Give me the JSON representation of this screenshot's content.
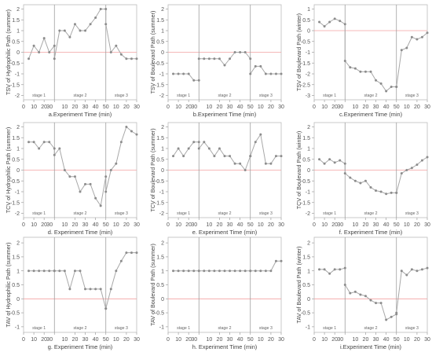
{
  "chart_data": [
    {
      "id": "a",
      "type": "line",
      "xlabel": "a.Experiment Time (min)",
      "ylabel": "TSV of Hydrophilic Path (summer)",
      "xticks": [
        "0",
        "10",
        "20",
        "30",
        "10",
        "20",
        "30",
        "40",
        "50",
        "10",
        "20",
        "30"
      ],
      "ylim": [
        -2.2,
        2.2
      ],
      "yticks": [
        -2,
        -1.5,
        -1,
        -0.5,
        0,
        0.5,
        1,
        1.5,
        2
      ],
      "stage_labels": [
        "stage 1",
        "stage 2",
        "stage 3"
      ],
      "series": [
        {
          "stage": 1,
          "x": [
            5,
            10,
            15,
            20,
            25,
            30
          ],
          "y": [
            -0.3,
            0.3,
            0,
            0.65,
            0,
            0.3
          ]
        },
        {
          "stage": 2,
          "x": [
            0,
            5,
            10,
            15,
            20,
            25,
            30,
            35,
            40,
            45,
            50
          ],
          "y": [
            -0.3,
            1,
            1,
            0.7,
            1.3,
            1,
            1,
            1.3,
            1.6,
            2,
            2
          ]
        },
        {
          "stage": 3,
          "x": [
            0,
            5,
            10,
            15,
            20,
            25,
            30
          ],
          "y": [
            1.3,
            0,
            0.3,
            -0.1,
            -0.3,
            -0.3,
            -0.3
          ]
        }
      ]
    },
    {
      "id": "b",
      "type": "line",
      "xlabel": "b.Experiment Time (min)",
      "ylabel": "TSV of Boulevard Path (summer)",
      "xticks": [
        "0",
        "10",
        "20",
        "30",
        "10",
        "20",
        "30",
        "40",
        "50",
        "10",
        "20",
        "30"
      ],
      "ylim": [
        -2.2,
        2.2
      ],
      "yticks": [
        -2,
        -1.5,
        -1,
        -0.5,
        0,
        0.5,
        1,
        1.5,
        2
      ],
      "stage_labels": [
        "stage 1",
        "stage 2",
        "stage 3"
      ],
      "series": [
        {
          "stage": 1,
          "x": [
            5,
            10,
            15,
            20,
            25,
            30
          ],
          "y": [
            -1,
            -1,
            -1,
            -1,
            -1.3,
            -1.3
          ]
        },
        {
          "stage": 2,
          "x": [
            0,
            5,
            10,
            15,
            20,
            25,
            30,
            35,
            40,
            45,
            50
          ],
          "y": [
            -0.3,
            -0.3,
            -0.3,
            -0.3,
            -0.3,
            -0.6,
            -0.3,
            0,
            0,
            0,
            -0.3
          ]
        },
        {
          "stage": 3,
          "x": [
            0,
            5,
            10,
            15,
            20,
            25,
            30
          ],
          "y": [
            -1,
            -0.65,
            -0.65,
            -1,
            -1,
            -1,
            -1
          ]
        }
      ]
    },
    {
      "id": "c",
      "type": "line",
      "xlabel": "c.Experiment Time (min)",
      "ylabel": "TSV of Boulevard Path (winter)",
      "xticks": [
        "0",
        "10",
        "20",
        "30",
        "10",
        "20",
        "30",
        "40",
        "50",
        "10",
        "20",
        "30"
      ],
      "ylim": [
        -3.2,
        1.2
      ],
      "yticks": [
        -3,
        -2.5,
        -2,
        -1.5,
        -1,
        -0.5,
        0,
        0.5,
        1
      ],
      "stage_labels": [
        "stage 1",
        "stage 2",
        "stage 3"
      ],
      "series": [
        {
          "stage": 1,
          "x": [
            5,
            10,
            15,
            20,
            25,
            30
          ],
          "y": [
            0.4,
            0.2,
            0.4,
            0.55,
            0.45,
            0.3
          ]
        },
        {
          "stage": 2,
          "x": [
            0,
            5,
            10,
            15,
            20,
            25,
            30,
            35,
            40,
            45,
            50
          ],
          "y": [
            -1.4,
            -1.7,
            -1.75,
            -1.9,
            -1.9,
            -1.9,
            -2.3,
            -2.45,
            -2.8,
            -2.6,
            -2.6
          ]
        },
        {
          "stage": 3,
          "x": [
            0,
            5,
            10,
            15,
            20,
            25,
            30
          ],
          "y": [
            -2.6,
            -0.9,
            -0.8,
            -0.3,
            -0.4,
            -0.3,
            -0.1
          ]
        }
      ]
    },
    {
      "id": "d",
      "type": "line",
      "xlabel": "d. Experiment Time (min)",
      "ylabel": "TCV of Hydrophilic Path (summer)",
      "xticks": [
        "0",
        "10",
        "20",
        "30",
        "10",
        "20",
        "30",
        "40",
        "50",
        "10",
        "20",
        "30"
      ],
      "ylim": [
        -2.2,
        2.2
      ],
      "yticks": [
        -2,
        -1.5,
        -1,
        -0.5,
        0,
        0.5,
        1,
        1.5,
        2
      ],
      "stage_labels": [
        "stage 1",
        "stage 2",
        "stage 3"
      ],
      "series": [
        {
          "stage": 1,
          "x": [
            5,
            10,
            15,
            20,
            25,
            30
          ],
          "y": [
            1.3,
            1.3,
            1,
            1.3,
            1.3,
            1
          ]
        },
        {
          "stage": 2,
          "x": [
            0,
            5,
            10,
            15,
            20,
            25,
            30,
            35,
            40,
            45,
            50
          ],
          "y": [
            0.7,
            1,
            0,
            -0.3,
            -0.3,
            -1,
            -0.65,
            -0.65,
            -1.3,
            -1.65,
            -0.3
          ]
        },
        {
          "stage": 3,
          "x": [
            0,
            5,
            10,
            15,
            20,
            25,
            30
          ],
          "y": [
            -1,
            0,
            0.3,
            1.3,
            2,
            1.8,
            1.65
          ]
        }
      ]
    },
    {
      "id": "e",
      "type": "line",
      "xlabel": "e. Experiment Time (min)",
      "ylabel": "TCV of Boulevard Path (summer)",
      "xticks": [
        "0",
        "10",
        "20",
        "30",
        "10",
        "20",
        "30",
        "40",
        "50",
        "10",
        "20",
        "30"
      ],
      "ylim": [
        -2.2,
        2.2
      ],
      "yticks": [
        -2,
        -1.5,
        -1,
        -0.5,
        0,
        0.5,
        1,
        1.5,
        2
      ],
      "stage_labels": [
        "stage 1",
        "stage 2",
        "stage 3"
      ],
      "series": [
        {
          "stage": 1,
          "x": [
            5,
            10,
            15,
            20,
            25,
            30
          ],
          "y": [
            0.65,
            1,
            0.65,
            1,
            1.3,
            1.3
          ]
        },
        {
          "stage": 2,
          "x": [
            0,
            5,
            10,
            15,
            20,
            25,
            30,
            35,
            40,
            45,
            50
          ],
          "y": [
            1,
            1.3,
            1,
            0.65,
            1,
            0.65,
            0.65,
            0.3,
            0.3,
            0,
            0.65
          ]
        },
        {
          "stage": 3,
          "x": [
            0,
            5,
            10,
            15,
            20,
            25,
            30
          ],
          "y": [
            0.65,
            1.3,
            1.65,
            0.3,
            0.3,
            0.65,
            0.65
          ]
        }
      ]
    },
    {
      "id": "f",
      "type": "line",
      "xlabel": "f. Experiment Time (min)",
      "ylabel": "TCV of Boulevard Path (winter)",
      "xticks": [
        "0",
        "10",
        "20",
        "30",
        "10",
        "20",
        "30",
        "40",
        "50",
        "10",
        "20",
        "30"
      ],
      "ylim": [
        -2.2,
        2.2
      ],
      "yticks": [
        -2,
        -1.5,
        -1,
        -0.5,
        0,
        0.5,
        1,
        1.5,
        2
      ],
      "stage_labels": [
        "stage 1",
        "stage 2",
        "stage 3"
      ],
      "series": [
        {
          "stage": 1,
          "x": [
            5,
            10,
            15,
            20,
            25,
            30
          ],
          "y": [
            0.5,
            0.3,
            0.5,
            0.35,
            0.45,
            0.3
          ]
        },
        {
          "stage": 2,
          "x": [
            0,
            5,
            10,
            15,
            20,
            25,
            30,
            35,
            40,
            45,
            50
          ],
          "y": [
            -0.15,
            -0.35,
            -0.5,
            -0.6,
            -0.5,
            -0.8,
            -0.95,
            -1,
            -1.1,
            -1.05,
            -1.05
          ]
        },
        {
          "stage": 3,
          "x": [
            0,
            5,
            10,
            15,
            20,
            25,
            30
          ],
          "y": [
            -1.05,
            -0.15,
            0,
            0.1,
            0.25,
            0.45,
            0.6
          ]
        }
      ]
    },
    {
      "id": "g",
      "type": "line",
      "xlabel": "g. Experiment Time (min)",
      "ylabel": "TAV of Hydrophilic Path (summer)",
      "xticks": [
        "0",
        "10",
        "20",
        "30",
        "10",
        "20",
        "30",
        "40",
        "50",
        "10",
        "20",
        "30"
      ],
      "ylim": [
        -1.2,
        2.2
      ],
      "yticks": [
        -1,
        -0.5,
        0,
        0.5,
        1,
        1.5,
        2
      ],
      "stage_labels": [
        "stage 1",
        "stage 2",
        "stage 3"
      ],
      "series": [
        {
          "stage": 1,
          "x": [
            5,
            10,
            15,
            20,
            25,
            30
          ],
          "y": [
            1,
            1,
            1,
            1,
            1,
            1
          ]
        },
        {
          "stage": 2,
          "x": [
            0,
            5,
            10,
            15,
            20,
            25,
            30,
            35,
            40,
            45,
            50
          ],
          "y": [
            1,
            1,
            1,
            0.35,
            1,
            1,
            0.35,
            0.35,
            0.35,
            0.35,
            -0.35
          ]
        },
        {
          "stage": 3,
          "x": [
            0,
            5,
            10,
            15,
            20,
            25,
            30
          ],
          "y": [
            -0.35,
            0.35,
            1,
            1.35,
            1.65,
            1.65,
            1.65
          ]
        }
      ]
    },
    {
      "id": "h",
      "type": "line",
      "xlabel": "h. Experiment Time (min)",
      "ylabel": "TAV of Boulevard Path (summer)",
      "xticks": [
        "0",
        "10",
        "20",
        "30",
        "10",
        "20",
        "30",
        "40",
        "50",
        "10",
        "20",
        "30"
      ],
      "ylim": [
        -1.2,
        2.2
      ],
      "yticks": [
        -1,
        -0.5,
        0,
        0.5,
        1,
        1.5,
        2
      ],
      "stage_labels": [
        "stage 1",
        "stage 2",
        "stage 3"
      ],
      "series": [
        {
          "stage": 1,
          "x": [
            5,
            10,
            15,
            20,
            25,
            30
          ],
          "y": [
            1,
            1,
            1,
            1,
            1,
            1
          ]
        },
        {
          "stage": 2,
          "x": [
            0,
            5,
            10,
            15,
            20,
            25,
            30,
            35,
            40,
            45,
            50
          ],
          "y": [
            1,
            1,
            1,
            1,
            1,
            1,
            1,
            1,
            1,
            1,
            1
          ]
        },
        {
          "stage": 3,
          "x": [
            0,
            5,
            10,
            15,
            20,
            25,
            30
          ],
          "y": [
            1,
            1,
            1,
            1,
            1,
            1.35,
            1.35
          ]
        }
      ]
    },
    {
      "id": "i",
      "type": "line",
      "xlabel": "i.Experiment Time (min)",
      "ylabel": "TAV of Boulevard Path (winter)",
      "xticks": [
        "0",
        "10",
        "20",
        "30",
        "10",
        "20",
        "30",
        "40",
        "50",
        "10",
        "20",
        "30"
      ],
      "ylim": [
        -1.2,
        2.2
      ],
      "yticks": [
        -1,
        -0.5,
        0,
        0.5,
        1,
        1.5,
        2
      ],
      "stage_labels": [
        "stage 1",
        "stage 2",
        "stage 3"
      ],
      "series": [
        {
          "stage": 1,
          "x": [
            5,
            10,
            15,
            20,
            25,
            30
          ],
          "y": [
            1.05,
            1.05,
            0.9,
            1.05,
            1.05,
            1.1
          ]
        },
        {
          "stage": 2,
          "x": [
            0,
            5,
            10,
            15,
            20,
            25,
            30,
            35,
            40,
            45,
            50
          ],
          "y": [
            0.5,
            0.2,
            0.25,
            0.15,
            0.1,
            -0.05,
            -0.15,
            -0.15,
            -0.75,
            -0.65,
            -0.55
          ]
        },
        {
          "stage": 3,
          "x": [
            0,
            5,
            10,
            15,
            20,
            25,
            30
          ],
          "y": [
            -0.5,
            1,
            0.85,
            1.05,
            1,
            1.05,
            1.1
          ]
        }
      ]
    }
  ]
}
